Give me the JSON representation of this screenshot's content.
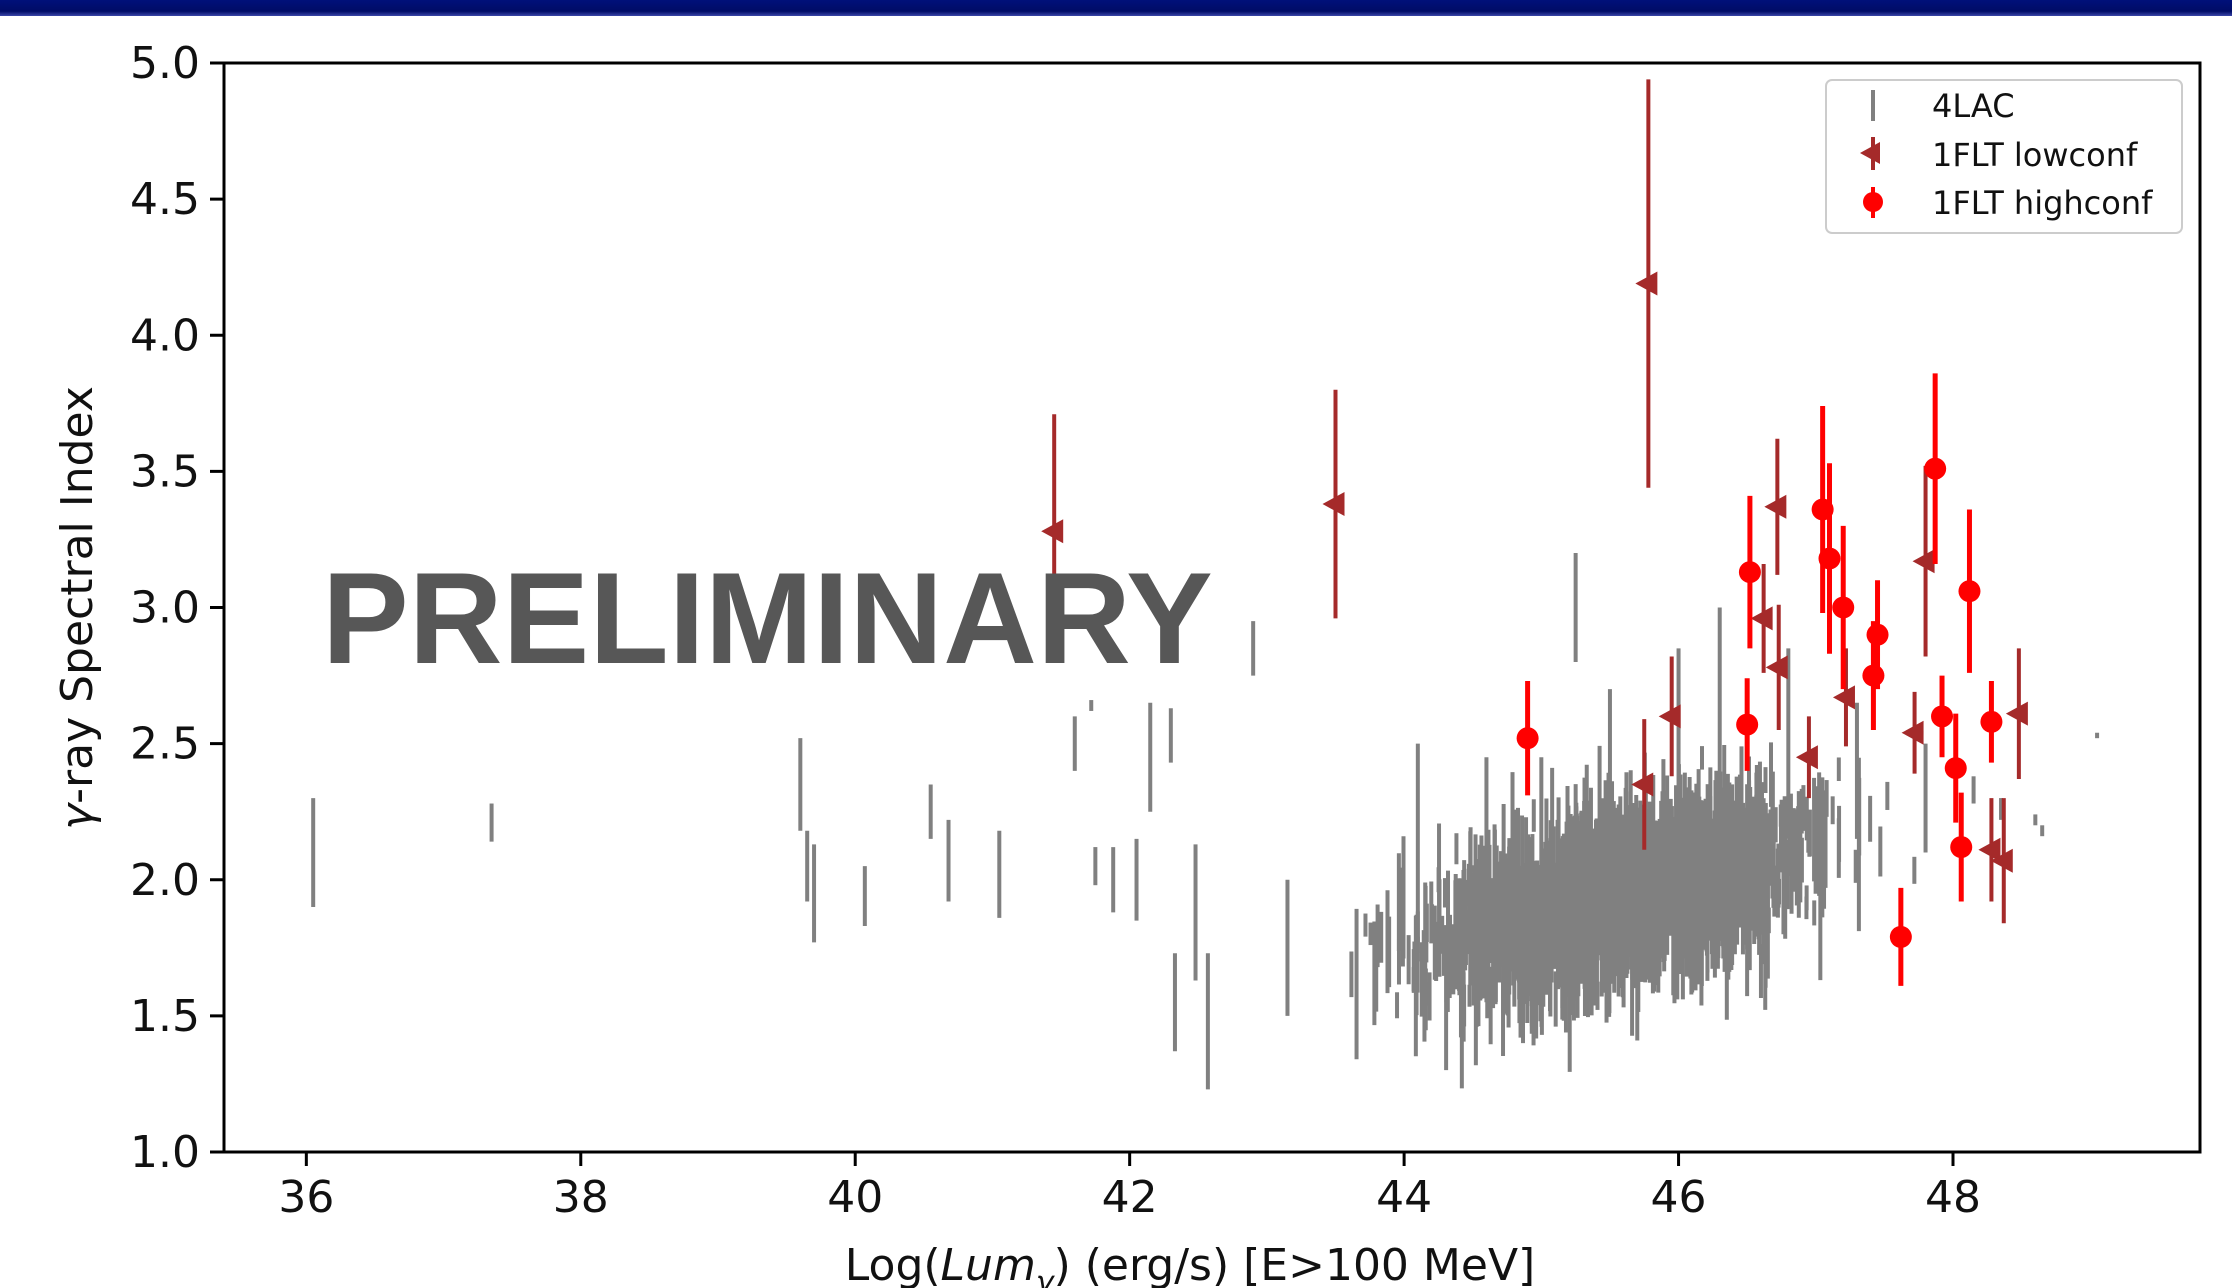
{
  "chart_data": {
    "type": "scatter",
    "title": "",
    "xlabel": "Log(Lum_γ) (erg/s) [E>100 MeV]",
    "xlabel_parts": [
      "Log(",
      "Lum",
      "γ",
      ") (erg/s) [E>100 MeV]"
    ],
    "ylabel": "γ-ray Spectral Index",
    "ylabel_parts": [
      "γ",
      "-ray Spectral Index"
    ],
    "xlim": [
      35.4,
      49.8
    ],
    "ylim": [
      1.0,
      5.0
    ],
    "xticks": [
      36,
      38,
      40,
      42,
      44,
      46,
      48
    ],
    "yticks": [
      1.0,
      1.5,
      2.0,
      2.5,
      3.0,
      3.5,
      4.0,
      4.5,
      5.0
    ],
    "xtick_labels": [
      "36",
      "38",
      "40",
      "42",
      "44",
      "46",
      "48"
    ],
    "ytick_labels": [
      "1.0",
      "1.5",
      "2.0",
      "2.5",
      "3.0",
      "3.5",
      "4.0",
      "4.5",
      "5.0"
    ],
    "grid": false,
    "legend_position": "top-right",
    "watermark": "PRELIMINARY",
    "series": [
      {
        "name": "4LAC",
        "marker": "errorbar-only",
        "color": "#808080",
        "points_note": "dense cloud of ~2000 sources; representative points listed",
        "points": [
          {
            "x": 36.05,
            "y": 2.1,
            "err": 0.2
          },
          {
            "x": 37.35,
            "y": 2.21,
            "err": 0.07
          },
          {
            "x": 39.6,
            "y": 2.35,
            "err": 0.17
          },
          {
            "x": 39.65,
            "y": 2.05,
            "err": 0.13
          },
          {
            "x": 39.7,
            "y": 1.95,
            "err": 0.18
          },
          {
            "x": 40.07,
            "y": 1.94,
            "err": 0.11
          },
          {
            "x": 40.55,
            "y": 2.25,
            "err": 0.1
          },
          {
            "x": 40.68,
            "y": 2.07,
            "err": 0.15
          },
          {
            "x": 41.05,
            "y": 2.02,
            "err": 0.16
          },
          {
            "x": 41.6,
            "y": 2.5,
            "err": 0.1
          },
          {
            "x": 41.72,
            "y": 2.64,
            "err": 0.02
          },
          {
            "x": 41.75,
            "y": 2.05,
            "err": 0.07
          },
          {
            "x": 41.88,
            "y": 2.0,
            "err": 0.12
          },
          {
            "x": 42.05,
            "y": 2.0,
            "err": 0.15
          },
          {
            "x": 42.15,
            "y": 2.45,
            "err": 0.2
          },
          {
            "x": 42.3,
            "y": 2.53,
            "err": 0.1
          },
          {
            "x": 42.33,
            "y": 1.55,
            "err": 0.18
          },
          {
            "x": 42.48,
            "y": 1.88,
            "err": 0.25
          },
          {
            "x": 42.57,
            "y": 1.48,
            "err": 0.25
          },
          {
            "x": 42.9,
            "y": 2.85,
            "err": 0.1
          },
          {
            "x": 43.15,
            "y": 1.75,
            "err": 0.25
          },
          {
            "x": 44.1,
            "y": 2.1,
            "err": 0.4
          },
          {
            "x": 44.6,
            "y": 2.0,
            "err": 0.45
          },
          {
            "x": 45.0,
            "y": 2.05,
            "err": 0.4
          },
          {
            "x": 45.25,
            "y": 3.0,
            "err": 0.2
          },
          {
            "x": 45.5,
            "y": 2.3,
            "err": 0.4
          },
          {
            "x": 46.0,
            "y": 2.45,
            "err": 0.4
          },
          {
            "x": 46.3,
            "y": 2.65,
            "err": 0.35
          },
          {
            "x": 46.8,
            "y": 2.5,
            "err": 0.35
          },
          {
            "x": 47.3,
            "y": 2.4,
            "err": 0.25
          },
          {
            "x": 47.8,
            "y": 2.3,
            "err": 0.2
          },
          {
            "x": 48.15,
            "y": 2.33,
            "err": 0.05
          },
          {
            "x": 48.35,
            "y": 2.26,
            "err": 0.04
          },
          {
            "x": 48.6,
            "y": 2.22,
            "err": 0.02
          },
          {
            "x": 48.65,
            "y": 2.18,
            "err": 0.02
          },
          {
            "x": 49.05,
            "y": 2.53,
            "err": 0.01
          }
        ]
      },
      {
        "name": "1FLT lowconf",
        "marker": "left-triangle",
        "color": "#a52a2a",
        "points": [
          {
            "x": 41.45,
            "y": 3.28,
            "err": 0.43
          },
          {
            "x": 43.5,
            "y": 3.38,
            "err": 0.42
          },
          {
            "x": 45.78,
            "y": 4.19,
            "err": 0.75
          },
          {
            "x": 45.75,
            "y": 2.35,
            "err": 0.24
          },
          {
            "x": 45.95,
            "y": 2.6,
            "err": 0.22
          },
          {
            "x": 46.62,
            "y": 2.96,
            "err": 0.2
          },
          {
            "x": 46.72,
            "y": 3.37,
            "err": 0.25
          },
          {
            "x": 46.73,
            "y": 2.78,
            "err": 0.23
          },
          {
            "x": 46.95,
            "y": 2.45,
            "err": 0.15
          },
          {
            "x": 47.22,
            "y": 2.67,
            "err": 0.18
          },
          {
            "x": 47.72,
            "y": 2.54,
            "err": 0.15
          },
          {
            "x": 47.8,
            "y": 3.17,
            "err": 0.35
          },
          {
            "x": 48.28,
            "y": 2.11,
            "err": 0.19
          },
          {
            "x": 48.37,
            "y": 2.07,
            "err": 0.23
          },
          {
            "x": 48.48,
            "y": 2.61,
            "err": 0.24
          }
        ]
      },
      {
        "name": "1FLT highconf",
        "marker": "circle",
        "color": "#ff0000",
        "points": [
          {
            "x": 44.9,
            "y": 2.52,
            "err": 0.21
          },
          {
            "x": 46.5,
            "y": 2.57,
            "err": 0.17
          },
          {
            "x": 46.52,
            "y": 3.13,
            "err": 0.28
          },
          {
            "x": 47.05,
            "y": 3.36,
            "err": 0.38
          },
          {
            "x": 47.1,
            "y": 3.18,
            "err": 0.35
          },
          {
            "x": 47.2,
            "y": 3.0,
            "err": 0.3
          },
          {
            "x": 47.42,
            "y": 2.75,
            "err": 0.2
          },
          {
            "x": 47.45,
            "y": 2.9,
            "err": 0.2
          },
          {
            "x": 47.62,
            "y": 1.79,
            "err": 0.18
          },
          {
            "x": 47.87,
            "y": 3.51,
            "err": 0.35
          },
          {
            "x": 47.92,
            "y": 2.6,
            "err": 0.15
          },
          {
            "x": 48.02,
            "y": 2.41,
            "err": 0.2
          },
          {
            "x": 48.06,
            "y": 2.12,
            "err": 0.2
          },
          {
            "x": 48.12,
            "y": 3.06,
            "err": 0.3
          },
          {
            "x": 48.28,
            "y": 2.58,
            "err": 0.15
          }
        ]
      }
    ]
  }
}
